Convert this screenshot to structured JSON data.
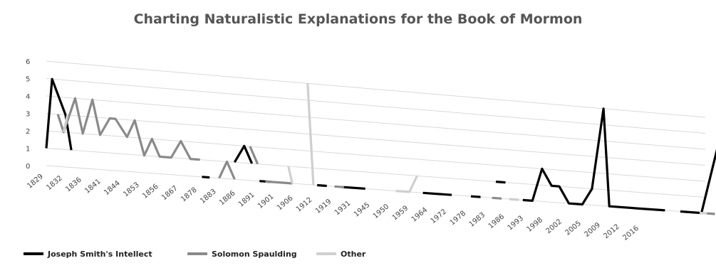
{
  "chart_data": {
    "type": "line",
    "title": "Charting Naturalistic Explanations for the Book of Mormon",
    "y_ticks": [
      "0",
      "1",
      "2",
      "3",
      "4",
      "5",
      "6"
    ],
    "ylim": [
      0,
      6
    ],
    "x_ticks": [
      "1829",
      "1832",
      "1836",
      "1841",
      "1844",
      "1853",
      "1856",
      "1867",
      "1878",
      "1883",
      "1886",
      "1891",
      "1901",
      "1906",
      "1912",
      "1919",
      "1931",
      "1945",
      "1950",
      "1959",
      "1964",
      "1972",
      "1978",
      "1983",
      "1986",
      "1993",
      "1998",
      "2002",
      "2005",
      "2009",
      "2012",
      "2016"
    ],
    "grid": true,
    "legend_position": "bottom-left",
    "series": [
      {
        "name": "Joseph Smith's Intellect",
        "color": "#000000",
        "values": [
          [
            0,
            1
          ],
          [
            0.3,
            5
          ],
          [
            1,
            3
          ],
          [
            1.3,
            1
          ],
          null,
          [
            8.1,
            0
          ],
          [
            8.5,
            0
          ],
          null,
          [
            9.8,
            1
          ],
          [
            10.3,
            2
          ],
          [
            10.7,
            1
          ],
          null,
          [
            11.1,
            0
          ],
          [
            11.7,
            0
          ],
          null,
          [
            14.1,
            0
          ],
          [
            14.6,
            0
          ],
          null,
          [
            15.4,
            0
          ],
          [
            16.6,
            0
          ],
          null,
          [
            19.6,
            0
          ],
          [
            20.2,
            0
          ],
          [
            21.1,
            0
          ],
          null,
          [
            22.1,
            0
          ],
          [
            22.6,
            0
          ],
          null,
          [
            23.4,
            1
          ],
          [
            23.9,
            1
          ],
          null,
          [
            24.8,
            0
          ],
          [
            25.3,
            0
          ],
          [
            25.8,
            2
          ],
          [
            26.3,
            1
          ],
          [
            26.7,
            1
          ],
          [
            27.2,
            0
          ],
          [
            27.9,
            0
          ],
          [
            28.4,
            1
          ],
          [
            29.0,
            6
          ],
          [
            29.3,
            0
          ],
          [
            31.0,
            0
          ],
          [
            32.2,
            0
          ],
          null,
          [
            33.0,
            0
          ],
          [
            34.1,
            0
          ],
          [
            34.5,
            2
          ],
          [
            34.9,
            4
          ],
          [
            35.1,
            0
          ]
        ]
      },
      {
        "name": "Solomon Spaulding",
        "color": "#8a8a8a",
        "values": [
          [
            0.6,
            3
          ],
          [
            0.9,
            2
          ],
          [
            1.5,
            4
          ],
          [
            1.9,
            2
          ],
          [
            2.4,
            4
          ],
          [
            2.8,
            2
          ],
          [
            3.3,
            3
          ],
          [
            3.6,
            3
          ],
          [
            4.2,
            2
          ],
          [
            4.6,
            3
          ],
          [
            5.1,
            1
          ],
          [
            5.5,
            2
          ],
          [
            5.9,
            1
          ],
          [
            6.5,
            1
          ],
          [
            7.0,
            2
          ],
          [
            7.5,
            1
          ],
          [
            8.0,
            1
          ],
          null,
          [
            9.0,
            0
          ],
          [
            9.4,
            1
          ],
          [
            9.8,
            0
          ],
          null,
          [
            10.6,
            2
          ],
          [
            11.0,
            1
          ],
          null,
          [
            11.4,
            0
          ],
          [
            12.1,
            0
          ],
          [
            12.8,
            0
          ],
          null,
          [
            15.0,
            0
          ],
          [
            15.5,
            0
          ],
          null,
          [
            23.2,
            0
          ],
          [
            23.7,
            0
          ],
          null,
          [
            34.3,
            0
          ],
          [
            34.8,
            0
          ]
        ]
      },
      {
        "name": "Other",
        "color": "#cfcfcf",
        "values": [
          [
            0.9,
            2
          ],
          [
            1.1,
            3
          ],
          null,
          [
            12.6,
            1
          ],
          [
            12.8,
            0
          ],
          null,
          [
            13.6,
            6
          ],
          [
            13.9,
            0
          ],
          null,
          [
            18.2,
            0
          ],
          [
            18.9,
            0
          ],
          [
            19.3,
            1
          ],
          null,
          [
            24.1,
            0
          ],
          [
            24.6,
            0
          ],
          null,
          [
            34.0,
            0
          ],
          [
            34.4,
            0
          ]
        ]
      }
    ]
  }
}
